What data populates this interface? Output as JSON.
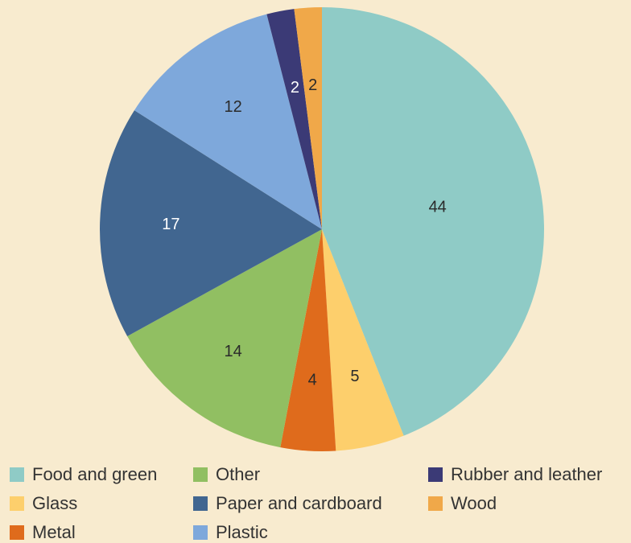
{
  "chart_data": {
    "type": "pie",
    "slices": [
      {
        "name": "Food and green",
        "value": 44,
        "label": "44",
        "color": "#8fcbc6"
      },
      {
        "name": "Glass",
        "value": 5,
        "label": "5",
        "color": "#fdcf6c"
      },
      {
        "name": "Metal",
        "value": 4,
        "label": "4",
        "color": "#df6b1c"
      },
      {
        "name": "Other",
        "value": 14,
        "label": "14",
        "color": "#91bf62"
      },
      {
        "name": "Paper and cardboard",
        "value": 17,
        "label": "17",
        "color": "#416690"
      },
      {
        "name": "Plastic",
        "value": 12,
        "label": "12",
        "color": "#7ea8db"
      },
      {
        "name": "Rubber and leather",
        "value": 2,
        "label": "2",
        "color": "#3b3a76"
      },
      {
        "name": "Wood",
        "value": 2,
        "label": "2",
        "color": "#f0a849"
      }
    ],
    "legend": [
      {
        "name": "Food and green",
        "color": "#8fcbc6"
      },
      {
        "name": "Other",
        "color": "#91bf62"
      },
      {
        "name": "Rubber and leather",
        "color": "#3b3a76"
      },
      {
        "name": "Glass",
        "color": "#fdcf6c"
      },
      {
        "name": "Paper and cardboard",
        "color": "#416690"
      },
      {
        "name": "Wood",
        "color": "#f0a849"
      },
      {
        "name": "Metal",
        "color": "#df6b1c"
      },
      {
        "name": "Plastic",
        "color": "#7ea8db"
      }
    ],
    "legend_placement": "bottom"
  }
}
